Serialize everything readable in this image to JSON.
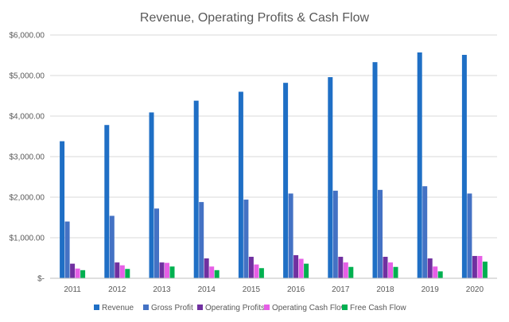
{
  "chart_data": {
    "type": "bar",
    "title": "Revenue, Operating Profits & Cash Flow",
    "xlabel": "",
    "ylabel": "",
    "ylim": [
      0,
      6000
    ],
    "yticks": [
      0,
      1000,
      2000,
      3000,
      4000,
      5000,
      6000
    ],
    "ytick_labels": [
      "$-",
      "$1,000.00",
      "$2,000.00",
      "$3,000.00",
      "$4,000.00",
      "$5,000.00",
      "$6,000.00"
    ],
    "grid": true,
    "legend_position": "bottom",
    "categories": [
      "2011",
      "2012",
      "2013",
      "2014",
      "2015",
      "2016",
      "2017",
      "2018",
      "2019",
      "2020"
    ],
    "series": [
      {
        "name": "Revenue",
        "color": "#1f6fc5",
        "values": [
          3380,
          3780,
          4090,
          4380,
          4600,
          4820,
          4960,
          5330,
          5570,
          5510
        ]
      },
      {
        "name": "Gross Profit",
        "color": "#4472c4",
        "values": [
          1400,
          1540,
          1720,
          1880,
          1940,
          2090,
          2160,
          2180,
          2270,
          2090
        ]
      },
      {
        "name": "Operating Profits",
        "color": "#7030a0",
        "values": [
          360,
          390,
          390,
          490,
          530,
          570,
          530,
          530,
          490,
          550
        ]
      },
      {
        "name": "Operating Cash Flow",
        "color": "#e65fe6",
        "values": [
          240,
          320,
          380,
          290,
          340,
          480,
          390,
          390,
          290,
          550
        ]
      },
      {
        "name": "Free Cash Flow",
        "color": "#00b050",
        "values": [
          200,
          230,
          290,
          200,
          250,
          360,
          280,
          280,
          170,
          410
        ]
      }
    ]
  }
}
